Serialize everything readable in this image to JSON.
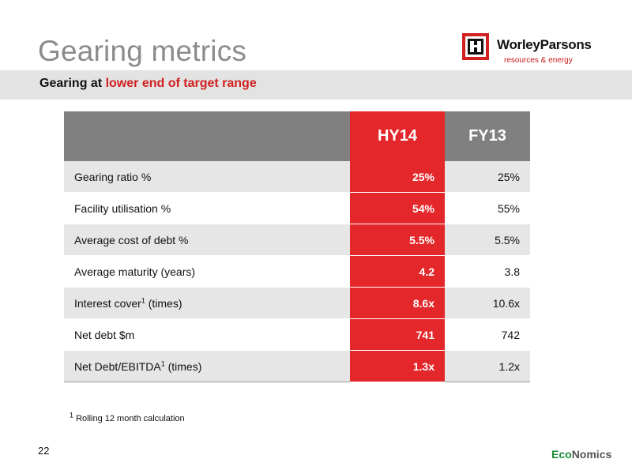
{
  "header": {
    "title": "Gearing metrics",
    "subtitle_prefix": "Gearing at ",
    "subtitle_highlight": "lower end of target range"
  },
  "logo": {
    "brand": "WorleyParsons",
    "tagline": "resources & energy"
  },
  "table": {
    "columns": [
      "HY14",
      "FY13"
    ],
    "rows": [
      {
        "label": "Gearing ratio %",
        "sup": "",
        "label_suffix": "",
        "hy14": "25%",
        "fy13": "25%"
      },
      {
        "label": "Facility utilisation %",
        "sup": "",
        "label_suffix": "",
        "hy14": "54%",
        "fy13": "55%"
      },
      {
        "label": "Average cost of debt %",
        "sup": "",
        "label_suffix": "",
        "hy14": "5.5%",
        "fy13": "5.5%"
      },
      {
        "label": "Average maturity (years)",
        "sup": "",
        "label_suffix": "",
        "hy14": "4.2",
        "fy13": "3.8"
      },
      {
        "label": "Interest cover",
        "sup": "1",
        "label_suffix": " (times)",
        "hy14": "8.6x",
        "fy13": "10.6x"
      },
      {
        "label": "Net debt $m",
        "sup": "",
        "label_suffix": "",
        "hy14": "741",
        "fy13": "742"
      },
      {
        "label": "Net Debt/EBITDA",
        "sup": "1",
        "label_suffix": " (times)",
        "hy14": "1.3x",
        "fy13": "1.2x"
      }
    ]
  },
  "footnote": {
    "marker": "1",
    "text": "Rolling 12 month calculation"
  },
  "page_number": "22",
  "footer_logo": {
    "part1": "Eco",
    "part2": "Nomics"
  },
  "colors": {
    "accent_red": "#e4272a",
    "header_gray": "#808080",
    "title_gray": "#8c8c8c"
  }
}
